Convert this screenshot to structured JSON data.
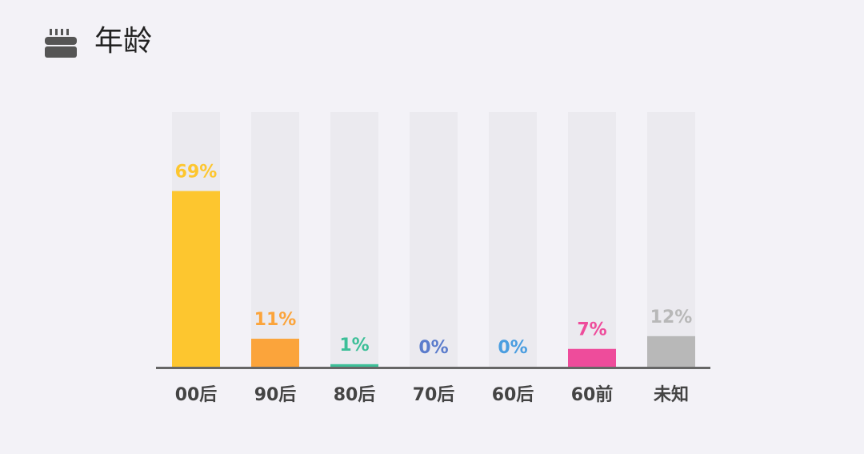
{
  "chart_data": {
    "type": "bar",
    "title": "年龄",
    "categories": [
      "00后",
      "90后",
      "80后",
      "70后",
      "60后",
      "60前",
      "未知"
    ],
    "values": [
      69,
      11,
      1,
      0,
      0,
      7,
      12
    ],
    "value_labels": [
      "69%",
      "11%",
      "1%",
      "0%",
      "0%",
      "7%",
      "12%"
    ],
    "colors": [
      "#fdc62f",
      "#fba43b",
      "#3dbf98",
      "#5b7ccc",
      "#4b9ee0",
      "#ee4c9b",
      "#b8b8b8"
    ],
    "ylim": [
      0,
      100
    ]
  }
}
